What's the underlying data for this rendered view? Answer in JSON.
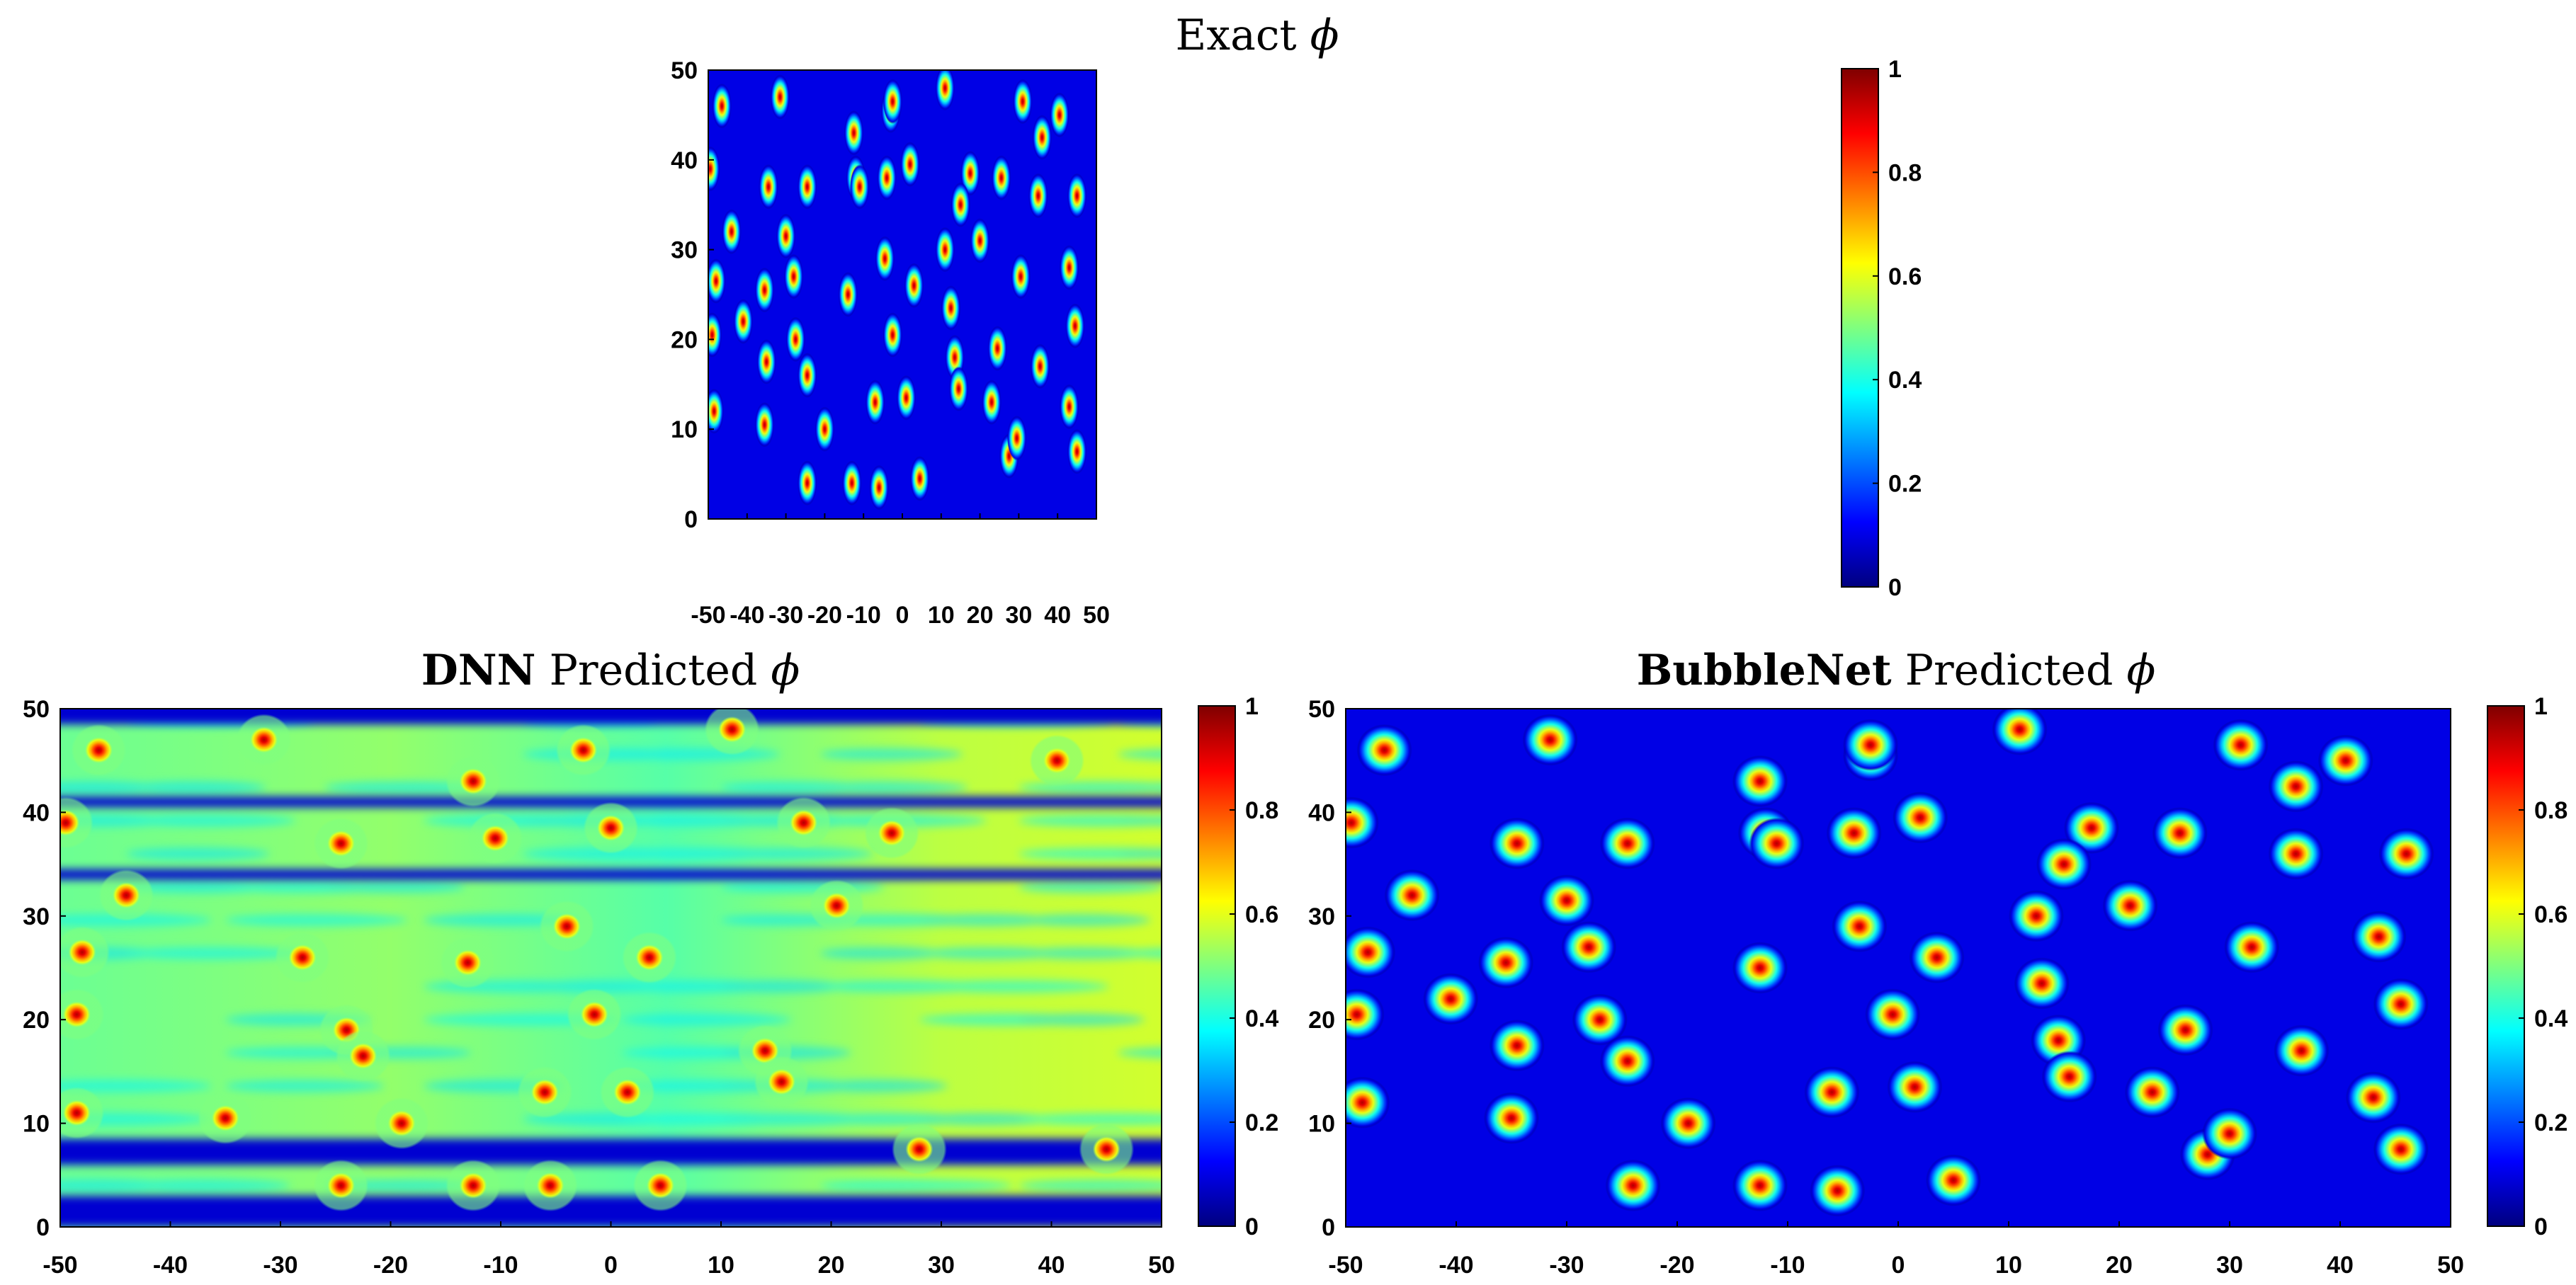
{
  "colormap": {
    "name": "jet",
    "stops": [
      "#00007f",
      "#0000ff",
      "#007fff",
      "#00ffff",
      "#7fff7f",
      "#ffff00",
      "#ff7f00",
      "#ff0000",
      "#7f0000"
    ],
    "range": [
      0,
      1
    ]
  },
  "chart_data": [
    {
      "type": "heatmap",
      "id": "exact",
      "title_prefix": "",
      "title_text": "Exact ",
      "title_symbol": "ϕ",
      "xlim": [
        -50,
        50
      ],
      "ylim": [
        0,
        50
      ],
      "xticks": [
        -50,
        -40,
        -30,
        -20,
        -10,
        0,
        10,
        20,
        30,
        40,
        50
      ],
      "yticks": [
        0,
        10,
        20,
        30,
        40,
        50
      ],
      "xtick_labels": [
        "-50",
        "-40",
        "-30",
        "-20",
        "-10",
        "0",
        "10",
        "20",
        "30",
        "40",
        "50"
      ],
      "ytick_labels": [
        "0",
        "10",
        "20",
        "30",
        "40",
        "50"
      ],
      "colorbar_labels": [
        "0",
        "0.2",
        "0.4",
        "0.6",
        "0.8",
        "1"
      ],
      "colorbar_ticks": [
        0,
        0.2,
        0.4,
        0.6,
        0.8,
        1
      ],
      "background_level": 0.0,
      "bubbles": [
        [
          -46.5,
          46
        ],
        [
          -31.5,
          47
        ],
        [
          -3,
          45.5
        ],
        [
          -2.5,
          46.5
        ],
        [
          11,
          48
        ],
        [
          31,
          46.5
        ],
        [
          40.5,
          45
        ],
        [
          36,
          42.5
        ],
        [
          -49.5,
          39
        ],
        [
          -12.5,
          43
        ],
        [
          -34.5,
          37
        ],
        [
          -24.5,
          37
        ],
        [
          -12,
          38
        ],
        [
          -11,
          37
        ],
        [
          -4,
          38
        ],
        [
          2,
          39.5
        ],
        [
          17.5,
          38.5
        ],
        [
          25.5,
          38
        ],
        [
          35,
          36
        ],
        [
          45,
          36
        ],
        [
          -44,
          32
        ],
        [
          -30,
          31.5
        ],
        [
          15,
          35
        ],
        [
          20,
          31
        ],
        [
          -48,
          26.5
        ],
        [
          -35.5,
          25.5
        ],
        [
          -28,
          27
        ],
        [
          -4.5,
          29
        ],
        [
          3,
          26
        ],
        [
          11,
          30
        ],
        [
          30.5,
          27
        ],
        [
          43,
          28
        ],
        [
          -49,
          20.5
        ],
        [
          -41,
          22
        ],
        [
          -35,
          17.5
        ],
        [
          -27.5,
          20
        ],
        [
          -24.5,
          16
        ],
        [
          -14,
          25
        ],
        [
          -2.5,
          20.5
        ],
        [
          12.5,
          23.5
        ],
        [
          13.5,
          18
        ],
        [
          14.5,
          14.5
        ],
        [
          24.5,
          19
        ],
        [
          35.5,
          17
        ],
        [
          44.5,
          21.5
        ],
        [
          -48.5,
          12
        ],
        [
          -35.5,
          10.5
        ],
        [
          -20,
          10
        ],
        [
          -7,
          13
        ],
        [
          1,
          13.5
        ],
        [
          23,
          13
        ],
        [
          43,
          12.5
        ],
        [
          -24.5,
          4
        ],
        [
          -13,
          4
        ],
        [
          -6,
          3.5
        ],
        [
          4.5,
          4.5
        ],
        [
          27.5,
          7
        ],
        [
          29.5,
          9
        ],
        [
          45,
          7.5
        ]
      ]
    },
    {
      "type": "heatmap",
      "id": "dnn",
      "title_prefix": "DNN",
      "title_text": " Predicted ",
      "title_symbol": "ϕ",
      "xlim": [
        -50,
        50
      ],
      "ylim": [
        0,
        50
      ],
      "xticks": [
        -50,
        -40,
        -30,
        -20,
        -10,
        0,
        10,
        20,
        30,
        40,
        50
      ],
      "yticks": [
        0,
        10,
        20,
        30,
        40,
        50
      ],
      "xtick_labels": [
        "-50",
        "-40",
        "-30",
        "-20",
        "-10",
        "0",
        "10",
        "20",
        "30",
        "40",
        "50"
      ],
      "ytick_labels": [
        "0",
        "10",
        "20",
        "30",
        "40",
        "50"
      ],
      "colorbar_labels": [
        "0",
        "0.2",
        "0.4",
        "0.6",
        "0.8",
        "1"
      ],
      "colorbar_ticks": [
        0,
        0.2,
        0.4,
        0.6,
        0.8,
        1
      ],
      "background_level": 0.5,
      "low_bands_y": [
        [
          48.5,
          51
        ],
        [
          40.5,
          41.5
        ],
        [
          33.5,
          34.5
        ],
        [
          6,
          8.5
        ],
        [
          0,
          3
        ]
      ],
      "bubbles": [
        [
          -46.5,
          46
        ],
        [
          -31.5,
          47
        ],
        [
          -2.5,
          46
        ],
        [
          11,
          48
        ],
        [
          40.5,
          45
        ],
        [
          -12.5,
          43
        ],
        [
          -49.5,
          39
        ],
        [
          -24.5,
          37
        ],
        [
          -10.5,
          37.5
        ],
        [
          0,
          38.5
        ],
        [
          17.5,
          39
        ],
        [
          25.5,
          38
        ],
        [
          -44,
          32
        ],
        [
          20.5,
          31
        ],
        [
          -48,
          26.5
        ],
        [
          -28,
          26
        ],
        [
          -13,
          25.5
        ],
        [
          -4,
          29
        ],
        [
          3.5,
          26
        ],
        [
          -48.5,
          20.5
        ],
        [
          -24,
          19
        ],
        [
          -22.5,
          16.5
        ],
        [
          -1.5,
          20.5
        ],
        [
          14,
          17
        ],
        [
          15.5,
          14
        ],
        [
          -48.5,
          11
        ],
        [
          -35,
          10.5
        ],
        [
          -19,
          10
        ],
        [
          -6,
          13
        ],
        [
          1.5,
          13
        ],
        [
          28,
          7.5
        ],
        [
          -24.5,
          4
        ],
        [
          -12.5,
          4
        ],
        [
          -5.5,
          4
        ],
        [
          4.5,
          4
        ],
        [
          45,
          7.5
        ]
      ]
    },
    {
      "type": "heatmap",
      "id": "bubblenet",
      "title_prefix": "BubbleNet",
      "title_text": " Predicted ",
      "title_symbol": "ϕ",
      "xlim": [
        -50,
        50
      ],
      "ylim": [
        0,
        50
      ],
      "xticks": [
        -50,
        -40,
        -30,
        -20,
        -10,
        0,
        10,
        20,
        30,
        40,
        50
      ],
      "yticks": [
        0,
        10,
        20,
        30,
        40,
        50
      ],
      "xtick_labels": [
        "-50",
        "-40",
        "-30",
        "-20",
        "-10",
        "0",
        "10",
        "20",
        "30",
        "40",
        "50"
      ],
      "ytick_labels": [
        "0",
        "10",
        "20",
        "30",
        "40",
        "50"
      ],
      "colorbar_labels": [
        "0",
        "0.2",
        "0.4",
        "0.6",
        "0.8",
        "1"
      ],
      "colorbar_ticks": [
        0,
        0.2,
        0.4,
        0.6,
        0.8,
        1
      ],
      "background_level": 0.0,
      "bubbles": [
        [
          -46.5,
          46
        ],
        [
          -31.5,
          47
        ],
        [
          -2.5,
          45.5
        ],
        [
          -2.5,
          46.5
        ],
        [
          11,
          48
        ],
        [
          31,
          46.5
        ],
        [
          40.5,
          45
        ],
        [
          36,
          42.5
        ],
        [
          -49.5,
          39
        ],
        [
          -12.5,
          43
        ],
        [
          -34.5,
          37
        ],
        [
          -24.5,
          37
        ],
        [
          -12,
          38
        ],
        [
          -11,
          37
        ],
        [
          -4,
          38
        ],
        [
          2,
          39.5
        ],
        [
          17.5,
          38.5
        ],
        [
          25.5,
          38
        ],
        [
          36,
          36
        ],
        [
          46,
          36
        ],
        [
          -44,
          32
        ],
        [
          -30,
          31.5
        ],
        [
          15,
          35
        ],
        [
          21,
          31
        ],
        [
          -48,
          26.5
        ],
        [
          -35.5,
          25.5
        ],
        [
          -28,
          27
        ],
        [
          -3.5,
          29
        ],
        [
          3.5,
          26
        ],
        [
          12.5,
          30
        ],
        [
          32,
          27
        ],
        [
          43.5,
          28
        ],
        [
          -49,
          20.5
        ],
        [
          -40.5,
          22
        ],
        [
          -34.5,
          17.5
        ],
        [
          -27,
          20
        ],
        [
          -24.5,
          16
        ],
        [
          -12.5,
          25
        ],
        [
          -0.5,
          20.5
        ],
        [
          13,
          23.5
        ],
        [
          14.5,
          18
        ],
        [
          15.5,
          14.5
        ],
        [
          26,
          19
        ],
        [
          36.5,
          17
        ],
        [
          45.5,
          21.5
        ],
        [
          -48.5,
          12
        ],
        [
          -35,
          10.5
        ],
        [
          -19,
          10
        ],
        [
          -6,
          13
        ],
        [
          1.5,
          13.5
        ],
        [
          23,
          13
        ],
        [
          43,
          12.5
        ],
        [
          -24,
          4
        ],
        [
          -12.5,
          4
        ],
        [
          -5.5,
          3.5
        ],
        [
          5,
          4.5
        ],
        [
          28,
          7
        ],
        [
          30,
          9
        ],
        [
          45.5,
          7.5
        ]
      ]
    }
  ]
}
